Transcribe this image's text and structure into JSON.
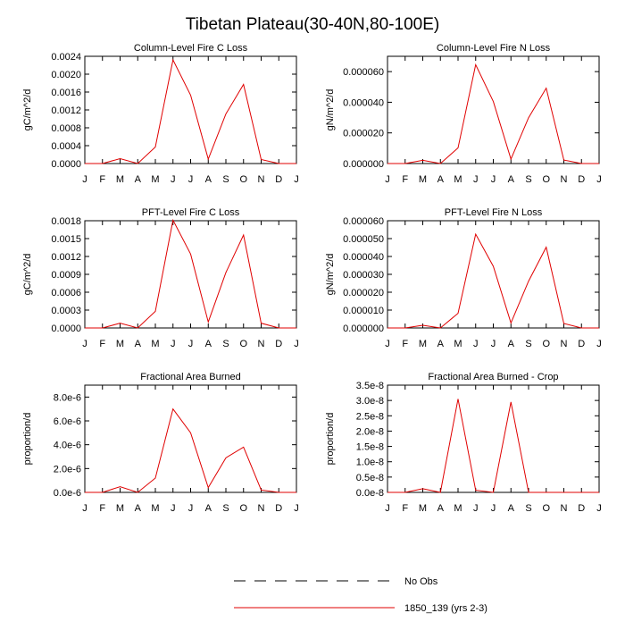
{
  "main_title": "Tibetan Plateau(30-40N,80-100E)",
  "month_labels": [
    "J",
    "F",
    "M",
    "A",
    "M",
    "J",
    "J",
    "A",
    "S",
    "O",
    "N",
    "D",
    "J"
  ],
  "colors": {
    "series": "#e00000",
    "obs": "#000000",
    "axis": "#000000"
  },
  "legend": {
    "obs_label": "No Obs",
    "model_label": "1850_139 (yrs 2-3)"
  },
  "chart_data": [
    {
      "type": "line",
      "title": "Column-Level Fire C Loss",
      "ylabel": "gC/m^2/d",
      "ylim": [
        0,
        0.0024
      ],
      "yticks": [
        0,
        0.0004,
        0.0008,
        0.0012,
        0.0016,
        0.002,
        0.0024
      ],
      "ytick_labels": [
        "0.0000",
        "0.0004",
        "0.0008",
        "0.0012",
        "0.0016",
        "0.0020",
        "0.0024"
      ],
      "x": [
        0,
        1,
        2,
        3,
        4,
        5,
        6,
        7,
        8,
        9,
        10,
        11,
        12
      ],
      "series": [
        {
          "name": "1850_139 (yrs 2-3)",
          "values": [
            0,
            0,
            0.00011,
            0,
            0.00037,
            0.00232,
            0.00153,
            0.0001,
            0.00111,
            0.00177,
            9e-05,
            0,
            0
          ]
        }
      ]
    },
    {
      "type": "line",
      "title": "Column-Level Fire N Loss",
      "ylabel": "gN/m^2/d",
      "ylim": [
        0,
        7e-05
      ],
      "yticks": [
        0,
        2e-05,
        4e-05,
        6e-05
      ],
      "ytick_labels": [
        "0.000000",
        "0.000020",
        "0.000040",
        "0.000060"
      ],
      "x": [
        0,
        1,
        2,
        3,
        4,
        5,
        6,
        7,
        8,
        9,
        10,
        11,
        12
      ],
      "series": [
        {
          "name": "1850_139 (yrs 2-3)",
          "values": [
            0,
            0,
            2.1e-06,
            0,
            1.02e-05,
            6.45e-05,
            4.05e-05,
            2.9e-06,
            2.99e-05,
            4.92e-05,
            2.3e-06,
            0,
            0
          ]
        }
      ]
    },
    {
      "type": "line",
      "title": "PFT-Level Fire C Loss",
      "ylabel": "gC/m^2/d",
      "ylim": [
        0,
        0.0018
      ],
      "yticks": [
        0,
        0.0003,
        0.0006,
        0.0009,
        0.0012,
        0.0015,
        0.0018
      ],
      "ytick_labels": [
        "0.0000",
        "0.0003",
        "0.0006",
        "0.0009",
        "0.0012",
        "0.0015",
        "0.0018"
      ],
      "x": [
        0,
        1,
        2,
        3,
        4,
        5,
        6,
        7,
        8,
        9,
        10,
        11,
        12
      ],
      "series": [
        {
          "name": "1850_139 (yrs 2-3)",
          "values": [
            0,
            0,
            8e-05,
            0,
            0.00028,
            0.00181,
            0.00124,
            0.0001,
            0.00093,
            0.00156,
            8e-05,
            0,
            0
          ]
        }
      ]
    },
    {
      "type": "line",
      "title": "PFT-Level Fire N Loss",
      "ylabel": "gN/m^2/d",
      "ylim": [
        0,
        6e-05
      ],
      "yticks": [
        0,
        1e-05,
        2e-05,
        3e-05,
        4e-05,
        5e-05,
        6e-05
      ],
      "ytick_labels": [
        "0.000000",
        "0.000010",
        "0.000020",
        "0.000030",
        "0.000040",
        "0.000050",
        "0.000060"
      ],
      "x": [
        0,
        1,
        2,
        3,
        4,
        5,
        6,
        7,
        8,
        9,
        10,
        11,
        12
      ],
      "series": [
        {
          "name": "1850_139 (yrs 2-3)",
          "values": [
            0,
            0,
            1.5e-06,
            0,
            8.2e-06,
            5.25e-05,
            3.45e-05,
            2.8e-06,
            2.62e-05,
            4.52e-05,
            2.5e-06,
            0,
            0
          ]
        }
      ]
    },
    {
      "type": "line",
      "title": "Fractional Area Burned",
      "ylabel": "proportion/d",
      "ylim": [
        0,
        9e-06
      ],
      "yticks": [
        0,
        2e-06,
        4e-06,
        6e-06,
        8e-06
      ],
      "ytick_labels": [
        "0.0e-6",
        "2.0e-6",
        "4.0e-6",
        "6.0e-6",
        "8.0e-6"
      ],
      "x": [
        0,
        1,
        2,
        3,
        4,
        5,
        6,
        7,
        8,
        9,
        10,
        11,
        12
      ],
      "series": [
        {
          "name": "1850_139 (yrs 2-3)",
          "values": [
            0,
            0,
            4.8e-07,
            0,
            1.2e-06,
            7e-06,
            5e-06,
            4e-07,
            2.9e-06,
            3.8e-06,
            2e-07,
            0,
            0
          ]
        }
      ]
    },
    {
      "type": "line",
      "title": "Fractional Area Burned - Crop",
      "ylabel": "proportion/d",
      "ylim": [
        0,
        3.5e-08
      ],
      "yticks": [
        0,
        5e-09,
        1e-08,
        1.5e-08,
        2e-08,
        2.5e-08,
        3e-08,
        3.5e-08
      ],
      "ytick_labels": [
        "0.0e-8",
        "0.5e-8",
        "1.0e-8",
        "1.5e-8",
        "2.0e-8",
        "2.5e-8",
        "3.0e-8",
        "3.5e-8"
      ],
      "x": [
        0,
        1,
        2,
        3,
        4,
        5,
        6,
        7,
        8,
        9,
        10,
        11,
        12
      ],
      "series": [
        {
          "name": "1850_139 (yrs 2-3)",
          "values": [
            0,
            0,
            1.2e-09,
            0,
            3.05e-08,
            7e-10,
            0,
            2.95e-08,
            0,
            0,
            0,
            0,
            0
          ]
        }
      ]
    }
  ]
}
